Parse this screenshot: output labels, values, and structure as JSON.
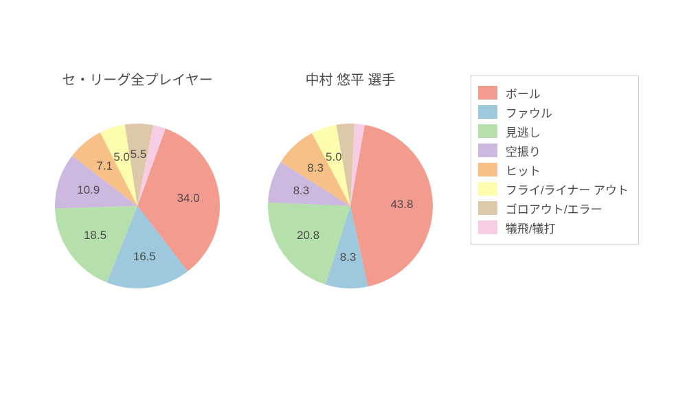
{
  "background_color": "#ffffff",
  "text_color": "#4d4d4d",
  "title_fontsize": 20,
  "label_fontsize": 17,
  "legend_fontsize": 17,
  "legend_border_color": "#cccccc",
  "categories": [
    {
      "label": "ボール",
      "color": "#f39b8f"
    },
    {
      "label": "ファウル",
      "color": "#9ec8de"
    },
    {
      "label": "見逃し",
      "color": "#b5e0ab"
    },
    {
      "label": "空振り",
      "color": "#cdb9e0"
    },
    {
      "label": "ヒット",
      "color": "#f7c086"
    },
    {
      "label": "フライ/ライナー アウト",
      "color": "#fdfdad"
    },
    {
      "label": "ゴロアウト/エラー",
      "color": "#ddc8a9"
    },
    {
      "label": "犠飛/犠打",
      "color": "#f7cde3"
    }
  ],
  "charts": [
    {
      "title": "セ・リーグ全プレイヤー",
      "type": "pie",
      "start_angle_deg": 70,
      "direction": "clockwise",
      "radius": 120,
      "label_radius": 75,
      "label_min_value": 5.0,
      "slices": [
        {
          "category_index": 0,
          "value": 34.0
        },
        {
          "category_index": 1,
          "value": 16.5
        },
        {
          "category_index": 2,
          "value": 18.5
        },
        {
          "category_index": 3,
          "value": 10.9
        },
        {
          "category_index": 4,
          "value": 7.1
        },
        {
          "category_index": 5,
          "value": 5.0
        },
        {
          "category_index": 6,
          "value": 5.5
        },
        {
          "category_index": 7,
          "value": 2.5
        }
      ]
    },
    {
      "title": "中村 悠平  選手",
      "type": "pie",
      "start_angle_deg": 80,
      "direction": "clockwise",
      "radius": 120,
      "label_radius": 75,
      "label_min_value": 5.0,
      "slices": [
        {
          "category_index": 0,
          "value": 43.8
        },
        {
          "category_index": 1,
          "value": 8.3
        },
        {
          "category_index": 2,
          "value": 20.8
        },
        {
          "category_index": 3,
          "value": 8.3
        },
        {
          "category_index": 4,
          "value": 8.3
        },
        {
          "category_index": 5,
          "value": 5.0
        },
        {
          "category_index": 6,
          "value": 3.5
        },
        {
          "category_index": 7,
          "value": 2.0
        }
      ]
    }
  ]
}
